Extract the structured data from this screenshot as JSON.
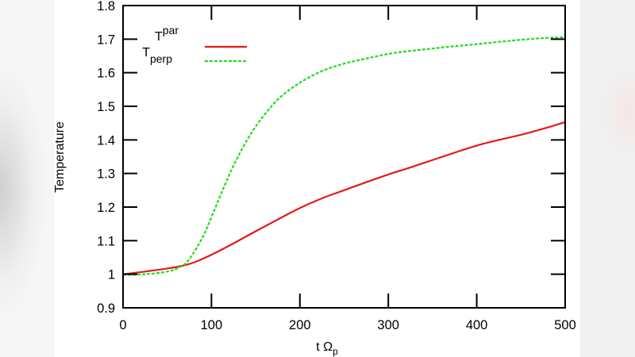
{
  "chart_data": {
    "type": "line",
    "title": "",
    "xlabel": "t Ω",
    "xlabel_subscript": "p",
    "ylabel": "Temperature",
    "xlim": [
      0,
      500
    ],
    "ylim": [
      0.9,
      1.8
    ],
    "xticks": [
      0,
      100,
      200,
      300,
      400,
      500
    ],
    "yticks": [
      0.9,
      1,
      1.1,
      1.2,
      1.3,
      1.4,
      1.5,
      1.6,
      1.7,
      1.8
    ],
    "xtick_labels": [
      "0",
      "100",
      "200",
      "300",
      "400",
      "500"
    ],
    "ytick_labels": [
      "0.9",
      "1",
      "1.1",
      "1.2",
      "1.3",
      "1.4",
      "1.5",
      "1.6",
      "1.7",
      "1.8"
    ],
    "grid": false,
    "legend_position": "upper left",
    "series": [
      {
        "name": "T_par",
        "label_main": "T",
        "label_sub": "par",
        "color": "#e41a1a",
        "style": "solid",
        "x": [
          0,
          25,
          50,
          65,
          80,
          100,
          125,
          150,
          175,
          200,
          225,
          250,
          275,
          300,
          325,
          350,
          375,
          400,
          425,
          450,
          475,
          500
        ],
        "y": [
          1.0,
          1.008,
          1.017,
          1.024,
          1.035,
          1.058,
          1.092,
          1.128,
          1.163,
          1.197,
          1.226,
          1.25,
          1.274,
          1.297,
          1.318,
          1.34,
          1.362,
          1.383,
          1.4,
          1.415,
          1.433,
          1.453
        ]
      },
      {
        "name": "T_perp",
        "label_main": "T",
        "label_sub": "perp",
        "color": "#22dd22",
        "style": "dashed",
        "x": [
          0,
          25,
          50,
          65,
          75,
          90,
          100,
          115,
          130,
          150,
          175,
          200,
          225,
          250,
          275,
          300,
          325,
          350,
          375,
          400,
          425,
          450,
          475,
          500
        ],
        "y": [
          0.998,
          1.0,
          1.008,
          1.022,
          1.045,
          1.11,
          1.17,
          1.265,
          1.35,
          1.44,
          1.52,
          1.57,
          1.605,
          1.627,
          1.642,
          1.656,
          1.665,
          1.672,
          1.679,
          1.685,
          1.692,
          1.698,
          1.703,
          1.706
        ]
      }
    ]
  }
}
